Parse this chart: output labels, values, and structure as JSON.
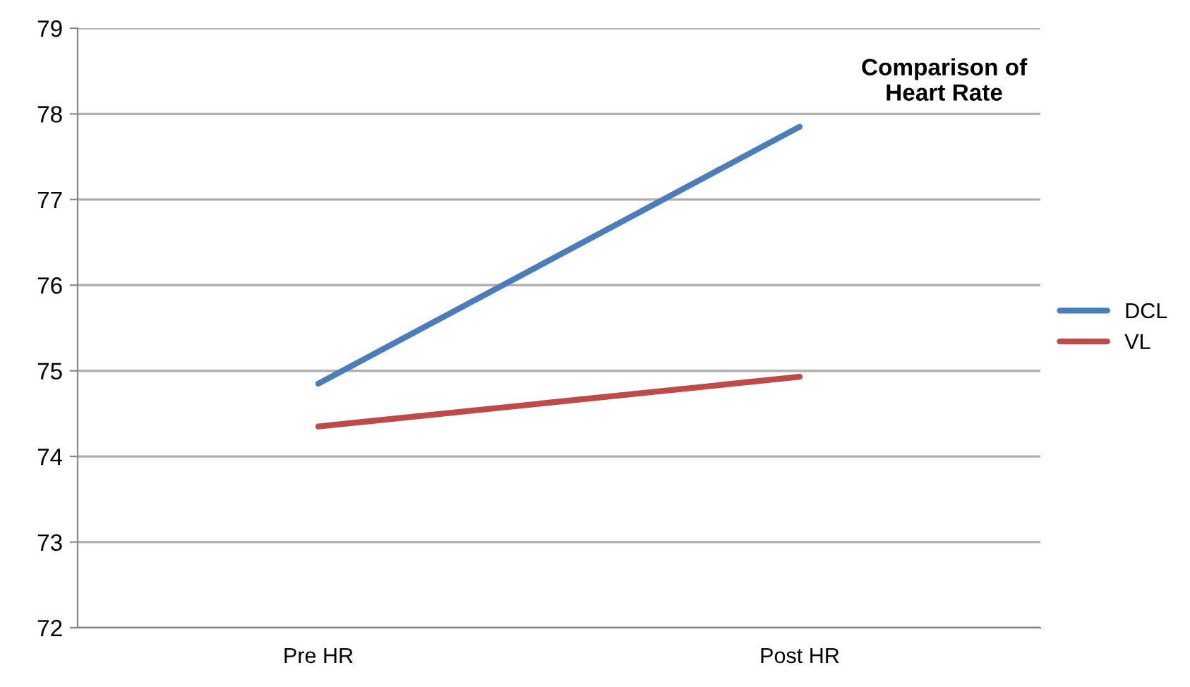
{
  "chart_data": {
    "type": "line",
    "title": "Comparison of\nHeart Rate",
    "categories": [
      "Pre HR",
      "Post HR"
    ],
    "series": [
      {
        "name": "DCL",
        "color": "#4a7ebb",
        "values": [
          74.85,
          77.85
        ]
      },
      {
        "name": "VL",
        "color": "#be4b48",
        "values": [
          74.35,
          74.93
        ]
      }
    ],
    "ylim": [
      72,
      79
    ],
    "yticks": [
      72,
      73,
      74,
      75,
      76,
      77,
      78,
      79
    ],
    "grid": "y",
    "legend": "right",
    "marker": "none",
    "line_style": "solid"
  }
}
